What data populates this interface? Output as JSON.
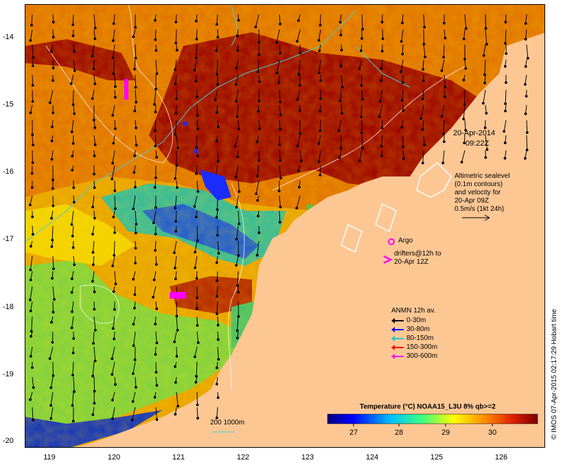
{
  "date_label": {
    "line1": "20-Apr-2014",
    "line2": "09:22Z"
  },
  "altimetry_note": {
    "line1": "Altimetric sealevel",
    "line2": "(0.1m contours)",
    "line3": "and velocity for",
    "line4": "20-Apr 09Z",
    "line5": "0.5m/s (1kt 24h)"
  },
  "argo_label": "Argo",
  "drifters_label": {
    "line1": "drifters@12h to",
    "line2": "20-Apr 12Z"
  },
  "anmn": {
    "title": "ANMN 12h av.",
    "items": [
      {
        "label": "0-30m",
        "color": "#000000"
      },
      {
        "label": "30-80m",
        "color": "#0000ff"
      },
      {
        "label": "80-150m",
        "color": "#00cccc"
      },
      {
        "label": "150-300m",
        "color": "#ff0000"
      },
      {
        "label": "300-600m",
        "color": "#ff00ff"
      }
    ]
  },
  "colorbar": {
    "title": "Temperature (°C) NOAA15_L3U 8% qb>=2",
    "ticks": [
      "27",
      "28",
      "29",
      "30"
    ]
  },
  "depth_label": "200  1000m",
  "y_axis": [
    "-14",
    "-15",
    "-16",
    "-17",
    "-18",
    "-19",
    "-20"
  ],
  "x_axis": [
    "119",
    "120",
    "121",
    "122",
    "123",
    "124",
    "125",
    "126"
  ],
  "credit": "© IMOS 07-Apr-2015 02:17:29 Hobart time",
  "colors": {
    "land": "#fdc794",
    "hot": "#990000",
    "warm": "#e06f00"
  }
}
